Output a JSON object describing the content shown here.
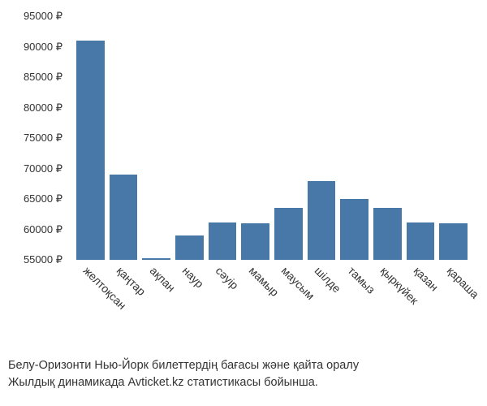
{
  "chart": {
    "type": "bar",
    "bar_color": "#4878a8",
    "background_color": "#ffffff",
    "text_color": "#333333",
    "axis_fontsize": 13,
    "xlabel_fontsize": 14,
    "xlabel_rotation": 45,
    "ylim": [
      55000,
      95000
    ],
    "ytick_step": 5000,
    "currency_symbol": "₽",
    "y_ticks": [
      {
        "value": 55000,
        "label": "55000 ₽"
      },
      {
        "value": 60000,
        "label": "60000 ₽"
      },
      {
        "value": 65000,
        "label": "65000 ₽"
      },
      {
        "value": 70000,
        "label": "70000 ₽"
      },
      {
        "value": 75000,
        "label": "75000 ₽"
      },
      {
        "value": 80000,
        "label": "80000 ₽"
      },
      {
        "value": 85000,
        "label": "85000 ₽"
      },
      {
        "value": 90000,
        "label": "90000 ₽"
      },
      {
        "value": 95000,
        "label": "95000 ₽"
      }
    ],
    "categories": [
      "желтоқсан",
      "қаңтар",
      "ақпан",
      "наур",
      "сәуір",
      "мамыр",
      "маусым",
      "шілде",
      "тамыз",
      "қыркүйек",
      "қазан",
      "қараша"
    ],
    "values": [
      91000,
      69000,
      55300,
      59000,
      61200,
      61000,
      63500,
      68000,
      65000,
      63500,
      61200,
      61000
    ]
  },
  "caption": {
    "line1": "Белу-Оризонти Нью-Йорк билеттердің бағасы және қайта оралу",
    "line2": "Жылдық динамикада Avticket.kz статистикасы бойынша."
  }
}
